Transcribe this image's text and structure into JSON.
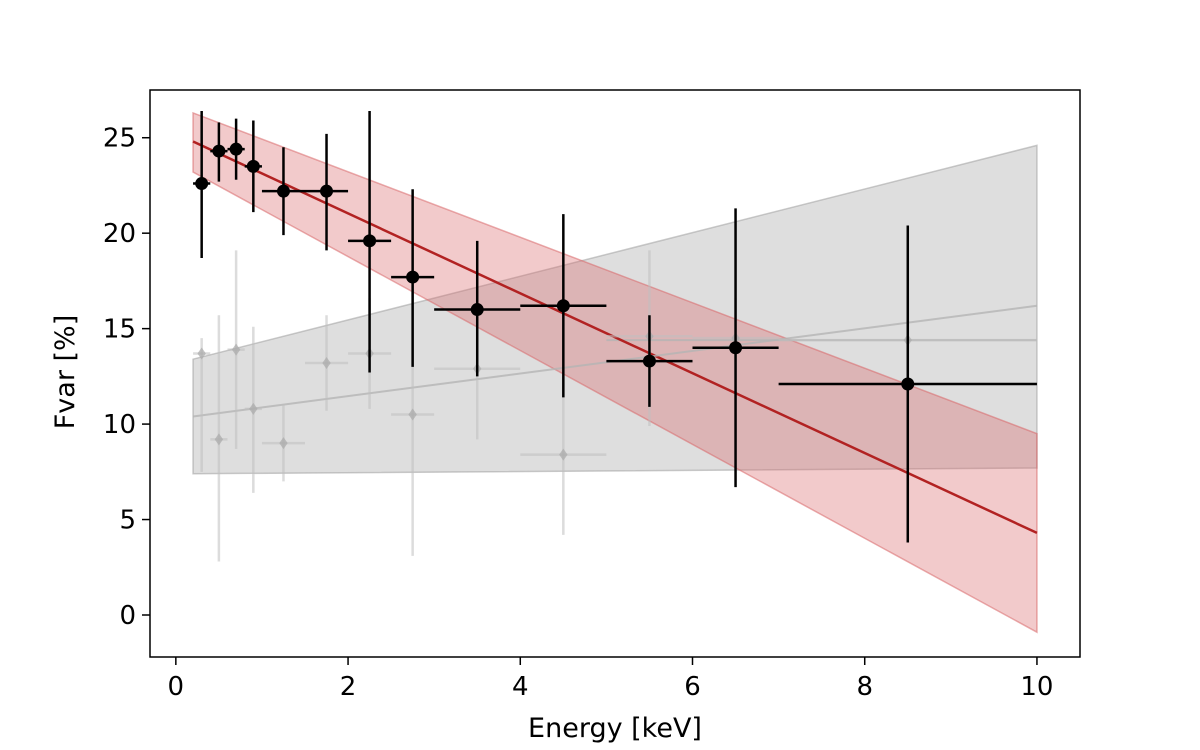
{
  "chart_data": {
    "type": "scatter",
    "title": "",
    "xlabel": "Energy [keV]",
    "ylabel": "Fvar [%]",
    "xlim": [
      -0.3,
      10.5
    ],
    "ylim": [
      -2.2,
      27.5
    ],
    "xticks": [
      0,
      2,
      4,
      6,
      8,
      10
    ],
    "yticks": [
      0,
      5,
      10,
      15,
      20,
      25
    ],
    "grid": false,
    "colors": {
      "primary_points": "#000000",
      "secondary_points": "#c0c0c0",
      "red_fit": "#b22222",
      "red_band": "#d9686a",
      "grey_fit": "#b4b4b4",
      "grey_band": "#a0a0a0"
    },
    "series": [
      {
        "marker": "circle",
        "points": [
          {
            "x": 0.3,
            "y": 22.6,
            "xerr": 0.1,
            "ylo": 18.7,
            "yhi": 26.4
          },
          {
            "x": 0.5,
            "y": 24.3,
            "xerr": 0.1,
            "ylo": 22.7,
            "yhi": 25.8
          },
          {
            "x": 0.7,
            "y": 24.4,
            "xerr": 0.1,
            "ylo": 22.8,
            "yhi": 26.0
          },
          {
            "x": 0.9,
            "y": 23.5,
            "xerr": 0.1,
            "ylo": 21.1,
            "yhi": 25.9
          },
          {
            "x": 1.25,
            "y": 22.2,
            "xerr": 0.25,
            "ylo": 19.9,
            "yhi": 24.5
          },
          {
            "x": 1.75,
            "y": 22.2,
            "xerr": 0.25,
            "ylo": 19.1,
            "yhi": 25.2
          },
          {
            "x": 2.25,
            "y": 19.6,
            "xerr": 0.25,
            "ylo": 12.7,
            "yhi": 26.4
          },
          {
            "x": 2.75,
            "y": 17.7,
            "xerr": 0.25,
            "ylo": 13.0,
            "yhi": 22.3
          },
          {
            "x": 3.5,
            "y": 16.0,
            "xerr": 0.5,
            "ylo": 12.5,
            "yhi": 19.6
          },
          {
            "x": 4.5,
            "y": 16.2,
            "xerr": 0.5,
            "ylo": 11.4,
            "yhi": 21.0
          },
          {
            "x": 5.5,
            "y": 13.3,
            "xerr": 0.5,
            "ylo": 10.9,
            "yhi": 15.7
          },
          {
            "x": 6.5,
            "y": 14.0,
            "xerr": 0.5,
            "ylo": 6.7,
            "yhi": 21.3
          },
          {
            "x": 8.5,
            "y": 12.1,
            "xerr": 1.5,
            "ylo": 3.8,
            "yhi": 20.4
          }
        ]
      },
      {
        "marker": "diamond",
        "points": [
          {
            "x": 0.3,
            "y": 13.7,
            "xerr": 0.1,
            "ylo": 7.5,
            "yhi": 14.5
          },
          {
            "x": 0.5,
            "y": 9.2,
            "xerr": 0.1,
            "ylo": 2.8,
            "yhi": 15.7
          },
          {
            "x": 0.7,
            "y": 13.9,
            "xerr": 0.1,
            "ylo": 8.7,
            "yhi": 19.1
          },
          {
            "x": 0.9,
            "y": 10.8,
            "xerr": 0.1,
            "ylo": 6.4,
            "yhi": 15.1
          },
          {
            "x": 1.25,
            "y": 9.0,
            "xerr": 0.25,
            "ylo": 7.0,
            "yhi": 11.0
          },
          {
            "x": 1.75,
            "y": 13.2,
            "xerr": 0.25,
            "ylo": 10.7,
            "yhi": 15.7
          },
          {
            "x": 2.25,
            "y": 13.7,
            "xerr": 0.25,
            "ylo": 10.8,
            "yhi": 16.6
          },
          {
            "x": 2.75,
            "y": 10.5,
            "xerr": 0.25,
            "ylo": 3.1,
            "yhi": 17.9
          },
          {
            "x": 3.5,
            "y": 12.9,
            "xerr": 0.5,
            "ylo": 9.2,
            "yhi": 16.6
          },
          {
            "x": 4.5,
            "y": 8.4,
            "xerr": 0.5,
            "ylo": 4.2,
            "yhi": 12.5
          },
          {
            "x": 5.5,
            "y": 14.6,
            "xerr": 0.5,
            "ylo": 9.9,
            "yhi": 19.1
          },
          {
            "x": 6.5,
            "y": 14.5,
            "xerr": 0.5,
            "ylo": 12.3,
            "yhi": 16.6
          },
          {
            "x": 8.5,
            "y": 14.4,
            "xerr": 1.5,
            "ylo": 12.1,
            "yhi": 16.7
          }
        ]
      }
    ],
    "fits": [
      {
        "color_key": "red",
        "x": [
          0.2,
          10.0
        ],
        "line": [
          24.8,
          4.3
        ],
        "band_upper": [
          26.3,
          9.5
        ],
        "band_lower": [
          23.2,
          -0.9
        ]
      },
      {
        "color_key": "grey",
        "x": [
          0.2,
          10.0
        ],
        "line": [
          10.4,
          16.2
        ],
        "band_upper": [
          13.4,
          24.6
        ],
        "band_lower": [
          7.4,
          7.7
        ]
      }
    ],
    "extra_lines": [
      {
        "color_key": "grey",
        "x": [
          5.0,
          10.0
        ],
        "y": [
          14.4,
          14.4
        ]
      }
    ]
  }
}
